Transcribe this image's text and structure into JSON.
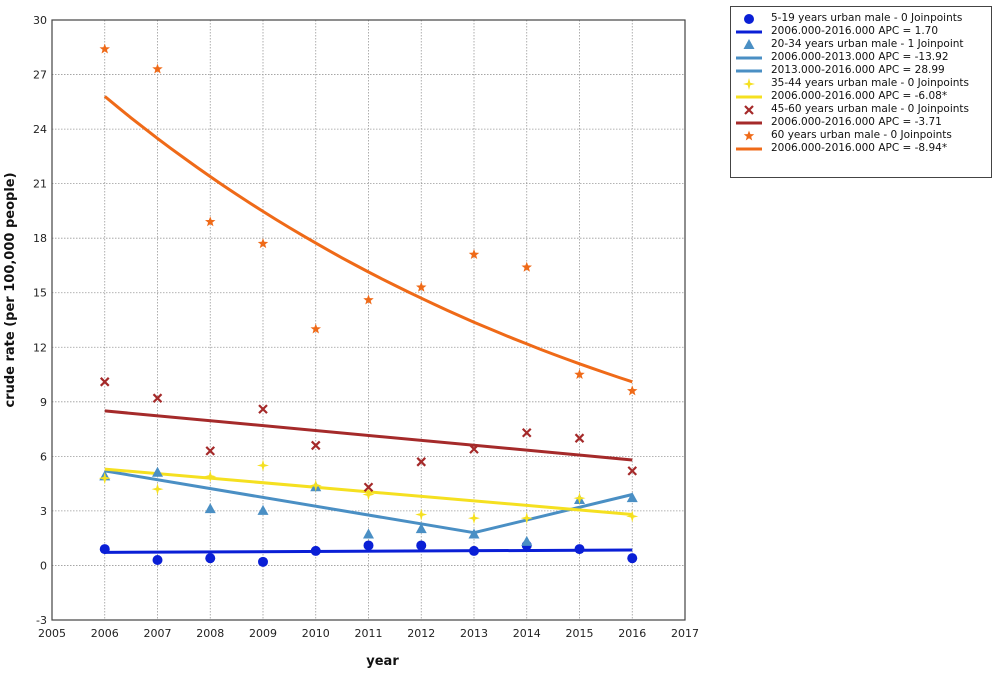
{
  "chart_data": {
    "type": "scatter",
    "xlabel": "year",
    "ylabel": "crude rate (per 100,000 people)",
    "xlim": [
      2005,
      2017
    ],
    "ylim": [
      -3,
      30
    ],
    "x_ticks": [
      2005,
      2006,
      2007,
      2008,
      2009,
      2010,
      2011,
      2012,
      2013,
      2014,
      2015,
      2016,
      2017
    ],
    "y_ticks": [
      -3,
      0,
      3,
      6,
      9,
      12,
      15,
      18,
      21,
      24,
      27,
      30
    ],
    "grid": true,
    "legend_position": "top-right, outside plot",
    "series": [
      {
        "name": "5-19 years urban male - 0 Joinpoints",
        "marker": "circle",
        "color": "#0a1fd6",
        "x": [
          2006,
          2007,
          2008,
          2009,
          2010,
          2011,
          2012,
          2013,
          2014,
          2015,
          2016
        ],
        "y": [
          0.9,
          0.3,
          0.4,
          0.2,
          0.8,
          1.1,
          1.1,
          0.8,
          1.1,
          0.9,
          0.4
        ],
        "fits": [
          {
            "label": "2006.000-2016.000 APC  = 1.70",
            "x": [
              2006,
              2016
            ],
            "y": [
              0.72,
              0.85
            ]
          }
        ]
      },
      {
        "name": "20-34 years urban male - 1 Joinpoint",
        "marker": "triangle",
        "color": "#4a8fc4",
        "x": [
          2006,
          2007,
          2008,
          2009,
          2010,
          2011,
          2012,
          2013,
          2014,
          2015,
          2016
        ],
        "y": [
          4.9,
          5.1,
          3.1,
          3.0,
          4.3,
          1.7,
          2.0,
          1.7,
          1.3,
          3.6,
          3.7
        ],
        "fits": [
          {
            "label": "2006.000-2013.000 APC  = -13.92",
            "x": [
              2006,
              2013
            ],
            "y": [
              5.2,
              1.8
            ]
          },
          {
            "label": "2013.000-2016.000 APC  = 28.99",
            "x": [
              2013,
              2016
            ],
            "y": [
              1.8,
              3.9
            ]
          }
        ]
      },
      {
        "name": "35-44 years urban male - 0 Joinpoints",
        "marker": "diamond-star",
        "color": "#f5e020",
        "x": [
          2006,
          2007,
          2008,
          2009,
          2010,
          2011,
          2012,
          2013,
          2014,
          2015,
          2016
        ],
        "y": [
          4.8,
          4.2,
          4.9,
          5.5,
          4.4,
          3.9,
          2.8,
          2.6,
          2.6,
          3.7,
          2.7
        ],
        "fits": [
          {
            "label": "2006.000-2016.000 APC  = -6.08*",
            "x": [
              2006,
              2016
            ],
            "y": [
              5.3,
              2.8
            ]
          }
        ]
      },
      {
        "name": "45-60 years urban male - 0 Joinpoints",
        "marker": "x",
        "color": "#a52a2a",
        "x": [
          2006,
          2007,
          2008,
          2009,
          2010,
          2011,
          2012,
          2013,
          2014,
          2015,
          2016
        ],
        "y": [
          10.1,
          9.2,
          6.3,
          8.6,
          6.6,
          4.3,
          5.7,
          6.4,
          7.3,
          7.0,
          5.2
        ],
        "fits": [
          {
            "label": "2006.000-2016.000 APC  = -3.71",
            "x": [
              2006,
              2016
            ],
            "y": [
              8.5,
              5.8
            ]
          }
        ]
      },
      {
        "name": "60 years urban male - 0 Joinpoints",
        "marker": "star",
        "color": "#ef6a18",
        "x": [
          2006,
          2007,
          2008,
          2009,
          2010,
          2011,
          2012,
          2013,
          2014,
          2015,
          2016
        ],
        "y": [
          28.4,
          27.3,
          18.9,
          17.7,
          13.0,
          14.6,
          15.3,
          17.1,
          16.4,
          10.5,
          9.6
        ],
        "fits": [
          {
            "label": "2006.000-2016.000 APC  = -8.94*",
            "x": [
              2006,
              2016
            ],
            "y": [
              25.8,
              10.1
            ],
            "curve": "exponential"
          }
        ]
      }
    ]
  }
}
